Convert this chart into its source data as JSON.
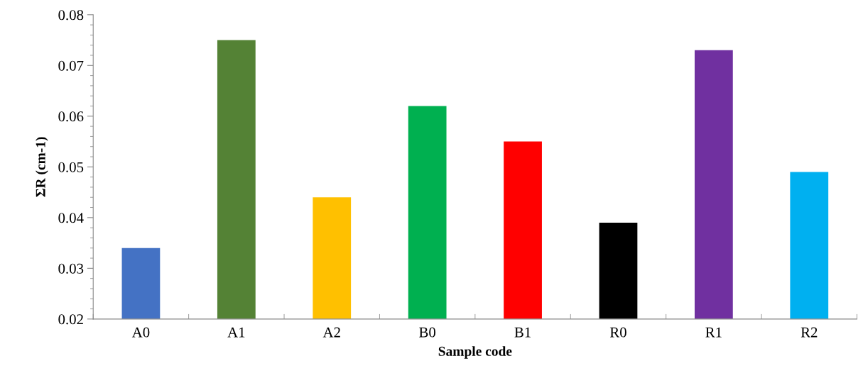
{
  "chart_data": {
    "type": "bar",
    "xlabel": "Sample code",
    "ylabel": "ΣR (cm-1)",
    "categories": [
      "A0",
      "A1",
      "A2",
      "B0",
      "B1",
      "R0",
      "R1",
      "R2"
    ],
    "values": [
      0.034,
      0.075,
      0.044,
      0.062,
      0.055,
      0.039,
      0.073,
      0.049
    ],
    "colors": [
      "#4472c4",
      "#548235",
      "#ffc000",
      "#00b050",
      "#ff0000",
      "#000000",
      "#7030a0",
      "#00b0f0"
    ],
    "ylim": [
      0.02,
      0.08
    ],
    "yticks": [
      0.02,
      0.03,
      0.04,
      0.05,
      0.06,
      0.07,
      0.08
    ],
    "grid": false,
    "legend": false
  }
}
